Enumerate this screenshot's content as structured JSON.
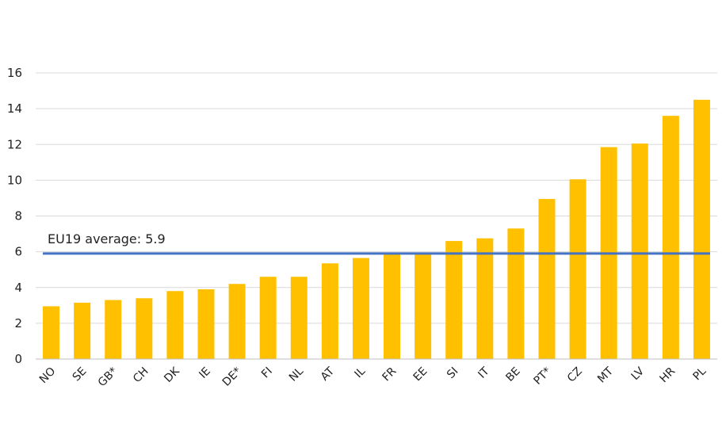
{
  "chart_data": {
    "type": "bar",
    "categories": [
      "NO",
      "SE",
      "GB*",
      "CH",
      "DK",
      "IE",
      "DE*",
      "FI",
      "NL",
      "AT",
      "IL",
      "FR",
      "EE",
      "SI",
      "IT",
      "BE",
      "PT*",
      "CZ",
      "MT",
      "LV",
      "HR",
      "PL"
    ],
    "values": [
      2.95,
      3.15,
      3.3,
      3.4,
      3.8,
      3.9,
      4.2,
      4.6,
      4.6,
      5.35,
      5.65,
      5.85,
      5.85,
      6.6,
      6.75,
      7.3,
      8.95,
      10.05,
      11.85,
      12.05,
      13.6,
      14.5
    ],
    "ylim": [
      0,
      16
    ],
    "yticks": [
      0,
      2,
      4,
      6,
      8,
      10,
      12,
      14,
      16
    ],
    "title": "",
    "xlabel": "",
    "ylabel": "",
    "grid": true,
    "reference_line": {
      "value": 5.9,
      "label": "EU19 average: 5.9"
    },
    "colors": {
      "bar": "#FFC000",
      "reference_line": "#4472C4",
      "grid": "#D9D9D9"
    }
  }
}
